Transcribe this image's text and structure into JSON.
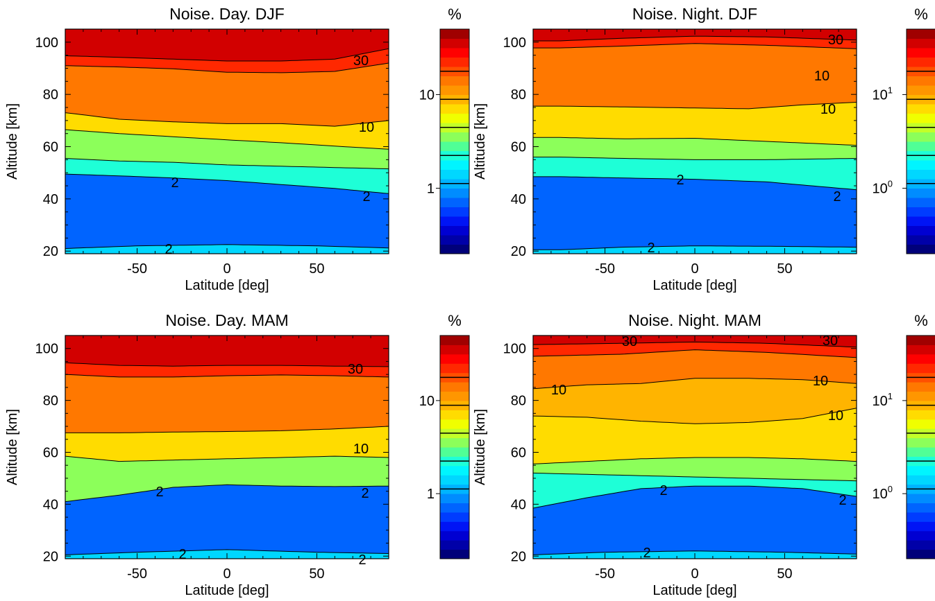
{
  "figure": {
    "x_label": "Latitude [deg]",
    "y_label": "Altitude [km]",
    "colorbar_unit": "%",
    "x_ticks": [
      "-50",
      "0",
      "50"
    ],
    "y_ticks": [
      "20",
      "40",
      "60",
      "80",
      "100"
    ]
  },
  "chart_data": [
    {
      "type": "heatmap",
      "title": "Noise. Day. DJF",
      "xlabel": "Latitude [deg]",
      "ylabel": "Altitude [km]",
      "xlim": [
        -90,
        90
      ],
      "ylim": [
        19,
        105
      ],
      "x_ticks": [
        -50,
        0,
        50
      ],
      "y_ticks": [
        20,
        40,
        60,
        80,
        100
      ],
      "colorbar": {
        "label": "%",
        "scale": "log",
        "range": [
          0.2,
          50
        ],
        "ticks": [
          "1",
          "10"
        ]
      },
      "contour_labels": [
        "30",
        "10",
        "2",
        "2",
        "2"
      ],
      "contours": [
        {
          "level": 30,
          "points": [
            [
              -90,
              94.8
            ],
            [
              -60,
              94.2
            ],
            [
              -30,
              93.5
            ],
            [
              0,
              92.8
            ],
            [
              30,
              92.8
            ],
            [
              60,
              93.5
            ],
            [
              90,
              97.5
            ]
          ]
        },
        {
          "level": 20,
          "points": [
            [
              -90,
              91.0
            ],
            [
              -60,
              90.5
            ],
            [
              -30,
              89.8
            ],
            [
              0,
              88.5
            ],
            [
              30,
              88.3
            ],
            [
              60,
              88.8
            ],
            [
              90,
              92.0
            ]
          ]
        },
        {
          "level": 10,
          "points": [
            [
              -90,
              73.0
            ],
            [
              -60,
              70.5
            ],
            [
              -30,
              69.5
            ],
            [
              0,
              68.8
            ],
            [
              30,
              68.8
            ],
            [
              60,
              67.8
            ],
            [
              90,
              70.0
            ]
          ]
        },
        {
          "level": 5,
          "points": [
            [
              -90,
              66.5
            ],
            [
              -60,
              65.0
            ],
            [
              -30,
              63.8
            ],
            [
              0,
              62.6
            ],
            [
              30,
              61.5
            ],
            [
              60,
              60.2
            ],
            [
              90,
              59.0
            ]
          ]
        },
        {
          "level": 3,
          "points": [
            [
              -90,
              55.5
            ],
            [
              -60,
              54.5
            ],
            [
              -30,
              54.0
            ],
            [
              0,
              53.0
            ],
            [
              30,
              52.5
            ],
            [
              60,
              52.0
            ],
            [
              90,
              51.5
            ]
          ]
        },
        {
          "level": 2,
          "points": [
            [
              -90,
              49.5
            ],
            [
              -60,
              48.8
            ],
            [
              -30,
              48.0
            ],
            [
              0,
              47.0
            ],
            [
              30,
              45.5
            ],
            [
              60,
              44.0
            ],
            [
              90,
              42.0
            ]
          ]
        },
        {
          "level": 2,
          "points": [
            [
              -90,
              21.0
            ],
            [
              -50,
              22.0
            ],
            [
              0,
              22.5
            ],
            [
              50,
              22.0
            ],
            [
              90,
              21.2
            ]
          ]
        }
      ]
    },
    {
      "type": "heatmap",
      "title": "Noise. Night. DJF",
      "xlabel": "Latitude [deg]",
      "ylabel": "Altitude [km]",
      "xlim": [
        -90,
        90
      ],
      "ylim": [
        19,
        105
      ],
      "x_ticks": [
        -50,
        0,
        50
      ],
      "y_ticks": [
        20,
        40,
        60,
        80,
        100
      ],
      "colorbar": {
        "label": "%",
        "scale": "log",
        "range": [
          0.2,
          50
        ],
        "ticks": [
          "10^1",
          "10^0"
        ]
      },
      "contour_labels": [
        "30",
        "10",
        "10",
        "2",
        "2",
        "2"
      ],
      "contours": [
        {
          "level": 30,
          "points": [
            [
              -75,
              100.5
            ],
            [
              -40,
              101.5
            ],
            [
              0,
              102.3
            ],
            [
              40,
              102.0
            ],
            [
              90,
              100.8
            ]
          ]
        },
        {
          "level": 20,
          "points": [
            [
              -75,
              97.8
            ],
            [
              -40,
              98.5
            ],
            [
              0,
              99.5
            ],
            [
              40,
              98.8
            ],
            [
              90,
              97.5
            ]
          ]
        },
        {
          "level": 10,
          "points": [
            [
              -75,
              75.5
            ],
            [
              -40,
              75.2
            ],
            [
              0,
              74.8
            ],
            [
              30,
              74.5
            ],
            [
              60,
              76.0
            ],
            [
              90,
              77.0
            ]
          ]
        },
        {
          "level": 5,
          "points": [
            [
              -75,
              63.5
            ],
            [
              -40,
              63.0
            ],
            [
              0,
              63.2
            ],
            [
              40,
              62.0
            ],
            [
              90,
              60.5
            ]
          ]
        },
        {
          "level": 3,
          "points": [
            [
              -75,
              56.0
            ],
            [
              -40,
              55.5
            ],
            [
              0,
              55.0
            ],
            [
              40,
              55.0
            ],
            [
              90,
              55.5
            ]
          ]
        },
        {
          "level": 2,
          "points": [
            [
              -75,
              48.5
            ],
            [
              -40,
              48.0
            ],
            [
              0,
              47.5
            ],
            [
              40,
              46.5
            ],
            [
              90,
              43.5
            ]
          ]
        },
        {
          "level": 2,
          "points": [
            [
              -75,
              20.5
            ],
            [
              -40,
              21.5
            ],
            [
              0,
              22.0
            ],
            [
              50,
              21.8
            ],
            [
              90,
              21.5
            ]
          ]
        }
      ]
    },
    {
      "type": "heatmap",
      "title": "Noise. Day. MAM",
      "xlabel": "Latitude [deg]",
      "ylabel": "Altitude [km]",
      "xlim": [
        -90,
        90
      ],
      "ylim": [
        19,
        105
      ],
      "x_ticks": [
        -50,
        0,
        50
      ],
      "y_ticks": [
        20,
        40,
        60,
        80,
        100
      ],
      "colorbar": {
        "label": "%",
        "scale": "log",
        "range": [
          0.2,
          50
        ],
        "ticks": [
          "10",
          "1"
        ]
      },
      "contour_labels": [
        "30",
        "10",
        "2",
        "2",
        "2",
        "2"
      ],
      "contours": [
        {
          "level": 30,
          "points": [
            [
              -90,
              94.5
            ],
            [
              -60,
              93.5
            ],
            [
              -30,
              93.2
            ],
            [
              0,
              93.5
            ],
            [
              30,
              93.5
            ],
            [
              60,
              93.2
            ],
            [
              90,
              93.0
            ]
          ]
        },
        {
          "level": 20,
          "points": [
            [
              -90,
              90.0
            ],
            [
              -60,
              89.0
            ],
            [
              -30,
              89.0
            ],
            [
              0,
              89.5
            ],
            [
              30,
              89.8
            ],
            [
              60,
              89.5
            ],
            [
              90,
              89.0
            ]
          ]
        },
        {
          "level": 10,
          "points": [
            [
              -90,
              67.5
            ],
            [
              -60,
              67.5
            ],
            [
              -30,
              67.8
            ],
            [
              0,
              68.0
            ],
            [
              30,
              68.3
            ],
            [
              60,
              69.0
            ],
            [
              90,
              70.0
            ]
          ]
        },
        {
          "level": 5,
          "points": [
            [
              -90,
              58.5
            ],
            [
              -60,
              56.5
            ],
            [
              -30,
              57.0
            ],
            [
              0,
              57.5
            ],
            [
              30,
              58.0
            ],
            [
              60,
              58.5
            ],
            [
              90,
              58.0
            ]
          ]
        },
        {
          "level": 2,
          "points": [
            [
              -90,
              41.0
            ],
            [
              -60,
              43.5
            ],
            [
              -30,
              46.5
            ],
            [
              0,
              47.5
            ],
            [
              30,
              47.0
            ],
            [
              60,
              46.8
            ],
            [
              90,
              47.0
            ]
          ]
        },
        {
          "level": 2,
          "points": [
            [
              -90,
              20.5
            ],
            [
              -50,
              21.5
            ],
            [
              0,
              22.5
            ],
            [
              50,
              21.5
            ],
            [
              90,
              21.0
            ]
          ]
        }
      ]
    },
    {
      "type": "heatmap",
      "title": "Noise. Night. MAM",
      "xlabel": "Latitude [deg]",
      "ylabel": "Altitude [km]",
      "xlim": [
        -90,
        90
      ],
      "ylim": [
        19,
        105
      ],
      "x_ticks": [
        -50,
        0,
        50
      ],
      "y_ticks": [
        20,
        40,
        60,
        80,
        100
      ],
      "colorbar": {
        "label": "%",
        "scale": "log",
        "range": [
          0.2,
          50
        ],
        "ticks": [
          "10^1",
          "10^0"
        ]
      },
      "contour_labels": [
        "30",
        "30",
        "10",
        "10",
        "10",
        "2",
        "2",
        "2"
      ],
      "contours": [
        {
          "level": 30,
          "points": [
            [
              -90,
              101.5
            ],
            [
              -40,
              102.0
            ],
            [
              0,
              102.5
            ],
            [
              40,
              102.0
            ],
            [
              90,
              100.5
            ]
          ]
        },
        {
          "level": 20,
          "points": [
            [
              -90,
              97.0
            ],
            [
              -40,
              97.8
            ],
            [
              0,
              99.5
            ],
            [
              40,
              98.5
            ],
            [
              90,
              96.5
            ]
          ]
        },
        {
          "level": 10,
          "points": [
            [
              -90,
              84.5
            ],
            [
              -60,
              86.0
            ],
            [
              -30,
              86.5
            ],
            [
              0,
              88.5
            ],
            [
              30,
              88.5
            ],
            [
              60,
              88.0
            ],
            [
              90,
              86.5
            ]
          ]
        },
        {
          "level": 10,
          "points": [
            [
              -90,
              74.0
            ],
            [
              -60,
              73.5
            ],
            [
              -30,
              72.0
            ],
            [
              0,
              71.0
            ],
            [
              30,
              71.5
            ],
            [
              60,
              73.0
            ],
            [
              90,
              77.0
            ]
          ]
        },
        {
          "level": 5,
          "points": [
            [
              -90,
              55.5
            ],
            [
              -60,
              56.5
            ],
            [
              -30,
              57.5
            ],
            [
              0,
              58.0
            ],
            [
              30,
              58.0
            ],
            [
              60,
              57.5
            ],
            [
              90,
              56.5
            ]
          ]
        },
        {
          "level": 3,
          "points": [
            [
              -90,
              52.0
            ],
            [
              -60,
              51.5
            ],
            [
              -30,
              51.0
            ],
            [
              0,
              50.5
            ],
            [
              30,
              50.0
            ],
            [
              60,
              49.5
            ],
            [
              90,
              49.0
            ]
          ]
        },
        {
          "level": 2,
          "points": [
            [
              -90,
              38.5
            ],
            [
              -60,
              42.5
            ],
            [
              -30,
              46.0
            ],
            [
              0,
              47.0
            ],
            [
              30,
              47.0
            ],
            [
              60,
              46.0
            ],
            [
              90,
              43.0
            ]
          ]
        },
        {
          "level": 2,
          "points": [
            [
              -90,
              20.5
            ],
            [
              -50,
              21.5
            ],
            [
              0,
              22.0
            ],
            [
              50,
              21.5
            ],
            [
              90,
              20.8
            ]
          ]
        }
      ]
    }
  ]
}
